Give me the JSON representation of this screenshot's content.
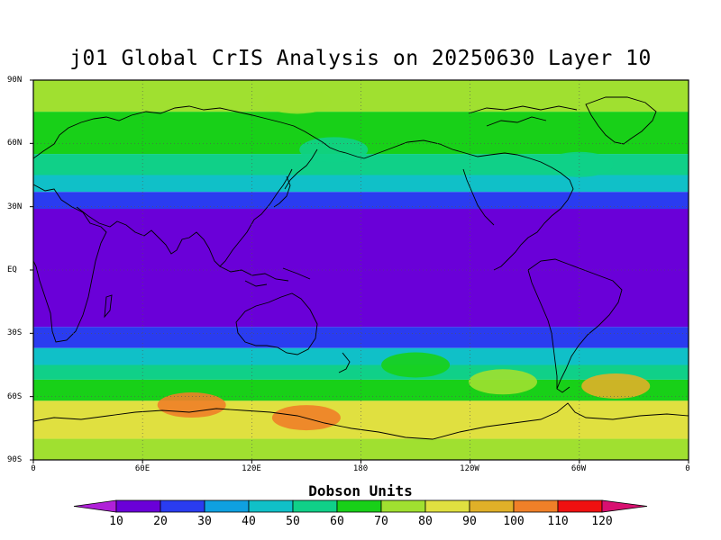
{
  "title": "j01 Global CrIS Analysis on 20250630 Layer 10",
  "map": {
    "projection": "cylindrical equidistant",
    "lon_range": [
      0,
      360
    ],
    "lat_range": [
      -90,
      90
    ],
    "lat_labels": [
      "90N",
      "60N",
      "30N",
      "EQ",
      "30S",
      "60S",
      "90S"
    ],
    "lat_values": [
      90,
      60,
      30,
      0,
      -30,
      -60,
      -90
    ],
    "lon_labels": [
      "0",
      "60E",
      "120E",
      "180",
      "120W",
      "60W",
      "0"
    ],
    "lon_values": [
      0,
      60,
      120,
      180,
      240,
      300,
      360
    ],
    "gridlines": "dotted every 30 degrees",
    "coastlines": "black outline",
    "ozone_bands_dobson": [
      {
        "lat_from": 75,
        "lat_to": 90,
        "value": 75
      },
      {
        "lat_from": 55,
        "lat_to": 75,
        "value": 65
      },
      {
        "lat_from": 45,
        "lat_to": 55,
        "value": 55
      },
      {
        "lat_from": 37,
        "lat_to": 45,
        "value": 45
      },
      {
        "lat_from": 29,
        "lat_to": 37,
        "value": 25
      },
      {
        "lat_from": -27,
        "lat_to": 29,
        "value": 15
      },
      {
        "lat_from": -37,
        "lat_to": -27,
        "value": 25
      },
      {
        "lat_from": -45,
        "lat_to": -37,
        "value": 45
      },
      {
        "lat_from": -52,
        "lat_to": -45,
        "value": 55
      },
      {
        "lat_from": -62,
        "lat_to": -52,
        "value": 65
      },
      {
        "lat_from": -80,
        "lat_to": -62,
        "value": 85
      },
      {
        "lat_from": -90,
        "lat_to": -80,
        "value": 75
      }
    ],
    "ozone_features_dobson": [
      {
        "lon": 145,
        "lat": 80,
        "value": 75
      },
      {
        "lon": 165,
        "lat": 57,
        "value": 55
      },
      {
        "lon": 300,
        "lat": 50,
        "value": 55
      },
      {
        "lon": 87,
        "lat": -64,
        "value": 100
      },
      {
        "lon": 150,
        "lat": -70,
        "value": 100
      },
      {
        "lon": 210,
        "lat": -45,
        "value": 65
      },
      {
        "lon": 258,
        "lat": -53,
        "value": 75
      },
      {
        "lon": 320,
        "lat": -55,
        "value": 95
      }
    ]
  },
  "colorbar": {
    "title": "Dobson Units",
    "ticks": [
      "10",
      "20",
      "30",
      "40",
      "50",
      "60",
      "70",
      "80",
      "90",
      "100",
      "110",
      "120"
    ],
    "colors": [
      "#b020d8",
      "#6a00d8",
      "#2a3cf0",
      "#0fa0e0",
      "#10c0c8",
      "#10d088",
      "#18d018",
      "#a0e030",
      "#e0e040",
      "#e0b028",
      "#f08028",
      "#f01010",
      "#d81070"
    ]
  }
}
